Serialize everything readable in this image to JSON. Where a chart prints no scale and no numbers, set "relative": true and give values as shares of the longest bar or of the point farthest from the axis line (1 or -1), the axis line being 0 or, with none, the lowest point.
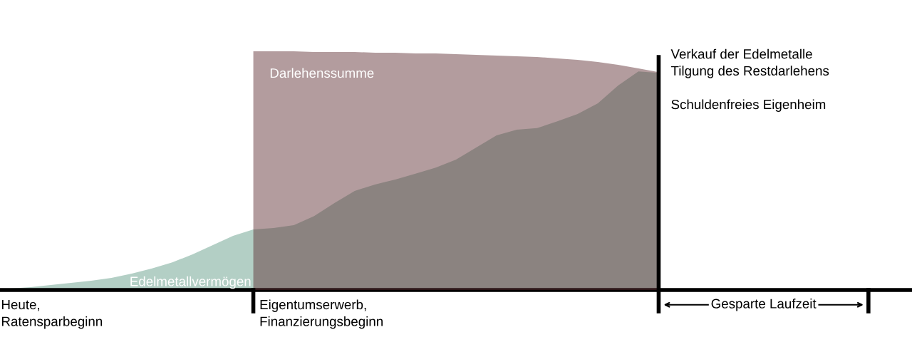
{
  "chart_data": {
    "type": "area",
    "relative": true,
    "legend": false,
    "grid": false,
    "categories": [
      null,
      null,
      null,
      null,
      null,
      null,
      null,
      null,
      null,
      null,
      null,
      null,
      null,
      null,
      null,
      null,
      null,
      null,
      null,
      null,
      null,
      null,
      null,
      null,
      null,
      null,
      null,
      null,
      null,
      null,
      null,
      null,
      null,
      null,
      null,
      null,
      null,
      null,
      null,
      null,
      null,
      null,
      null,
      null,
      null
    ],
    "series": [
      {
        "name": "Edelmetallvermögen",
        "color": "#b3cfc5",
        "values": [
          0.006,
          0.012,
          0.021,
          0.03,
          0.039,
          0.051,
          0.069,
          0.09,
          0.116,
          0.149,
          0.188,
          0.227,
          0.254,
          0.26,
          0.272,
          0.31,
          0.364,
          0.415,
          0.442,
          0.463,
          0.487,
          0.513,
          0.546,
          0.597,
          0.648,
          0.672,
          0.678,
          0.707,
          0.737,
          0.782,
          0.857,
          0.916,
          0.91,
          null,
          null,
          null,
          null,
          null,
          null,
          null,
          null,
          null,
          null,
          null,
          null
        ]
      },
      {
        "name": "Darlehenssumme",
        "color": "#b39c9e",
        "values": [
          null,
          null,
          null,
          null,
          null,
          null,
          null,
          null,
          null,
          null,
          null,
          null,
          1,
          1,
          1,
          0.997,
          0.997,
          0.997,
          0.994,
          0.994,
          0.991,
          0.991,
          0.988,
          0.985,
          0.982,
          0.979,
          0.976,
          0.97,
          0.964,
          0.955,
          0.943,
          0.928,
          0.913,
          null,
          null,
          null,
          null,
          null,
          null,
          null,
          null,
          null,
          null,
          null,
          null
        ]
      }
    ],
    "annotations": [
      "Heute,\nRatensparbeginn",
      "Eigentumserwerb,\nFinanzierungsbeginn",
      "Verkauf der Edelmetalle\nTilgung des Restdarlehens\n\nSchuldenfreies Eigenheim",
      "Gesparte Laufzeit"
    ]
  }
}
